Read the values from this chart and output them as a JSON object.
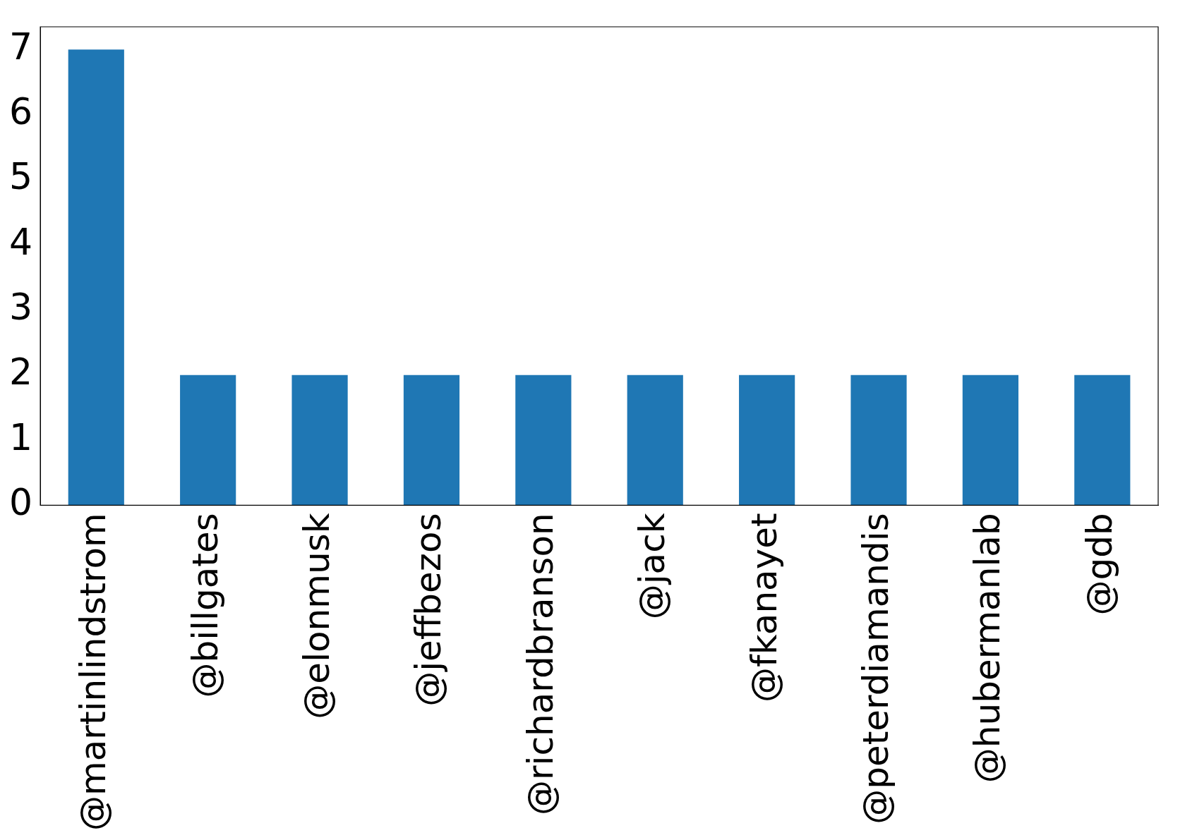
{
  "chart_data": {
    "type": "bar",
    "categories": [
      "@martinlindstrom",
      "@billgates",
      "@elonmusk",
      "@jeffbezos",
      "@richardbranson",
      "@jack",
      "@fkanayet",
      "@peterdiamandis",
      "@hubermanlab",
      "@gdb"
    ],
    "values": [
      7,
      2,
      2,
      2,
      2,
      2,
      2,
      2,
      2,
      2
    ],
    "color": "#1f77b4",
    "ylim": [
      0,
      7.35
    ],
    "yticks": [
      0,
      1,
      2,
      3,
      4,
      5,
      6,
      7
    ],
    "grid": false,
    "legend": false
  }
}
